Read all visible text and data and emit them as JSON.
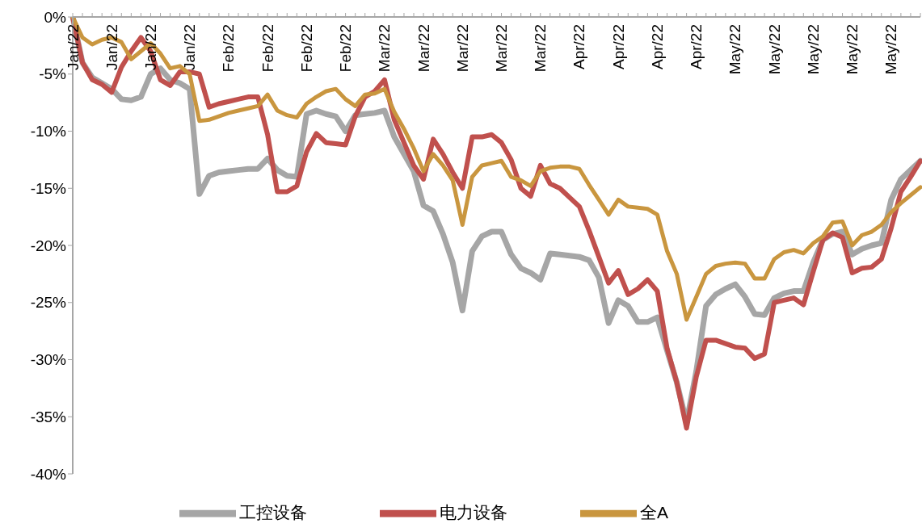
{
  "chart_data": {
    "type": "line",
    "categories": [
      "Jan/22",
      null,
      null,
      null,
      "Jan/22",
      null,
      null,
      null,
      "Jan/22",
      null,
      null,
      null,
      "Jan/22",
      null,
      null,
      null,
      "Feb/22",
      null,
      null,
      null,
      "Feb/22",
      null,
      null,
      null,
      "Feb/22",
      null,
      null,
      null,
      "Feb/22",
      null,
      null,
      null,
      "Mar/22",
      null,
      null,
      null,
      "Mar/22",
      null,
      null,
      null,
      "Mar/22",
      null,
      null,
      null,
      "Mar/22",
      null,
      null,
      null,
      "Mar/22",
      null,
      null,
      null,
      "Apr/22",
      null,
      null,
      null,
      "Apr/22",
      null,
      null,
      null,
      "Apr/22",
      null,
      null,
      null,
      "Apr/22",
      null,
      null,
      null,
      "May/22",
      null,
      null,
      null,
      "May/22",
      null,
      null,
      null,
      "May/22",
      null,
      null,
      null,
      "May/22",
      null,
      null,
      null,
      "May/22",
      null,
      null,
      null
    ],
    "series": [
      {
        "name": "工控设备",
        "color": "#a6a6a6",
        "values": [
          0,
          -4.0,
          -5.3,
          -5.8,
          -6.3,
          -7.2,
          -7.3,
          -7.0,
          -5.0,
          -4.5,
          -5.5,
          -5.8,
          -6.3,
          -15.5,
          -13.9,
          -13.6,
          -13.5,
          -13.4,
          -13.3,
          -13.3,
          -12.4,
          -13.4,
          -13.9,
          -14.0,
          -8.5,
          -8.2,
          -8.5,
          -8.7,
          -10.0,
          -8.6,
          -8.5,
          -8.4,
          -8.2,
          -10.5,
          -12.0,
          -13.5,
          -16.5,
          -17.0,
          -19.0,
          -21.5,
          -25.7,
          -20.5,
          -19.2,
          -18.8,
          -18.8,
          -20.8,
          -22.0,
          -22.4,
          -23.0,
          -20.7,
          -20.8,
          -20.9,
          -21.0,
          -21.3,
          -22.8,
          -26.8,
          -24.8,
          -25.3,
          -26.7,
          -26.7,
          -26.3,
          -29.2,
          -32.0,
          -35.5,
          -31.0,
          -25.3,
          -24.3,
          -23.8,
          -23.4,
          -24.5,
          -26.0,
          -26.1,
          -24.6,
          -24.2,
          -24.0,
          -24.0,
          -21.5,
          -19.5,
          -19.0,
          -18.8,
          -20.8,
          -20.3,
          -20.0,
          -19.8,
          -16.0,
          -14.2,
          -13.4,
          -12.6
        ]
      },
      {
        "name": "电力设备",
        "color": "#c0504d",
        "values": [
          0,
          -4.0,
          -5.5,
          -5.9,
          -6.6,
          -4.4,
          -3.0,
          -1.8,
          -3.0,
          -5.5,
          -6.0,
          -4.8,
          -4.8,
          -5.0,
          -7.9,
          -7.6,
          -7.4,
          -7.2,
          -7.0,
          -7.0,
          -10.3,
          -15.3,
          -15.3,
          -14.8,
          -11.8,
          -10.2,
          -11.0,
          -11.1,
          -11.2,
          -8.7,
          -7.0,
          -6.5,
          -5.5,
          -9.0,
          -11.0,
          -13.0,
          -14.2,
          -10.7,
          -12.0,
          -13.6,
          -15.0,
          -10.5,
          -10.5,
          -10.3,
          -11.0,
          -12.5,
          -15.0,
          -15.7,
          -13.0,
          -14.6,
          -15.0,
          -15.8,
          -16.6,
          -18.7,
          -21.0,
          -23.3,
          -22.2,
          -24.3,
          -23.8,
          -23.0,
          -24.0,
          -29.0,
          -32.0,
          -36.0,
          -31.5,
          -28.3,
          -28.3,
          -28.6,
          -28.9,
          -29.0,
          -29.9,
          -29.5,
          -25.0,
          -24.8,
          -24.6,
          -25.2,
          -22.3,
          -19.5,
          -18.9,
          -19.3,
          -22.4,
          -22.0,
          -21.9,
          -21.2,
          -18.5,
          -15.3,
          -14.0,
          -12.6
        ]
      },
      {
        "name": "全A",
        "color": "#c9963f",
        "values": [
          0,
          -1.8,
          -2.4,
          -2.0,
          -1.8,
          -2.2,
          -3.7,
          -3.0,
          -2.3,
          -3.2,
          -4.5,
          -4.3,
          -5.0,
          -9.1,
          -9.0,
          -8.7,
          -8.4,
          -8.2,
          -8.0,
          -7.8,
          -6.8,
          -8.2,
          -8.6,
          -8.8,
          -7.6,
          -7.0,
          -6.5,
          -6.3,
          -7.2,
          -7.8,
          -6.8,
          -6.7,
          -6.3,
          -8.3,
          -9.8,
          -11.5,
          -13.5,
          -12.0,
          -13.0,
          -14.3,
          -18.2,
          -14.0,
          -13.0,
          -12.8,
          -12.6,
          -14.0,
          -14.3,
          -14.8,
          -13.5,
          -13.2,
          -13.1,
          -13.1,
          -13.3,
          -14.7,
          -16.0,
          -17.3,
          -16.0,
          -16.6,
          -16.7,
          -16.8,
          -17.3,
          -20.5,
          -22.5,
          -26.5,
          -24.5,
          -22.5,
          -21.8,
          -21.6,
          -21.5,
          -21.6,
          -22.9,
          -22.9,
          -21.2,
          -20.6,
          -20.4,
          -20.7,
          -19.8,
          -19.2,
          -18.0,
          -17.9,
          -20.0,
          -19.1,
          -18.8,
          -18.2,
          -17.1,
          -16.3,
          -15.6,
          -14.9
        ]
      }
    ],
    "ylim": [
      -40,
      0
    ],
    "yticks": [
      {
        "value": 0,
        "label": "0%"
      },
      {
        "value": -5,
        "label": "-5%"
      },
      {
        "value": -10,
        "label": "-10%"
      },
      {
        "value": -15,
        "label": "-15%"
      },
      {
        "value": -20,
        "label": "-20%"
      },
      {
        "value": -25,
        "label": "-25%"
      },
      {
        "value": -30,
        "label": "-30%"
      },
      {
        "value": -35,
        "label": "-35%"
      },
      {
        "value": -40,
        "label": "-40%"
      }
    ],
    "grid": false,
    "legend": "bottom",
    "marker": "none",
    "line_style": "solid"
  }
}
